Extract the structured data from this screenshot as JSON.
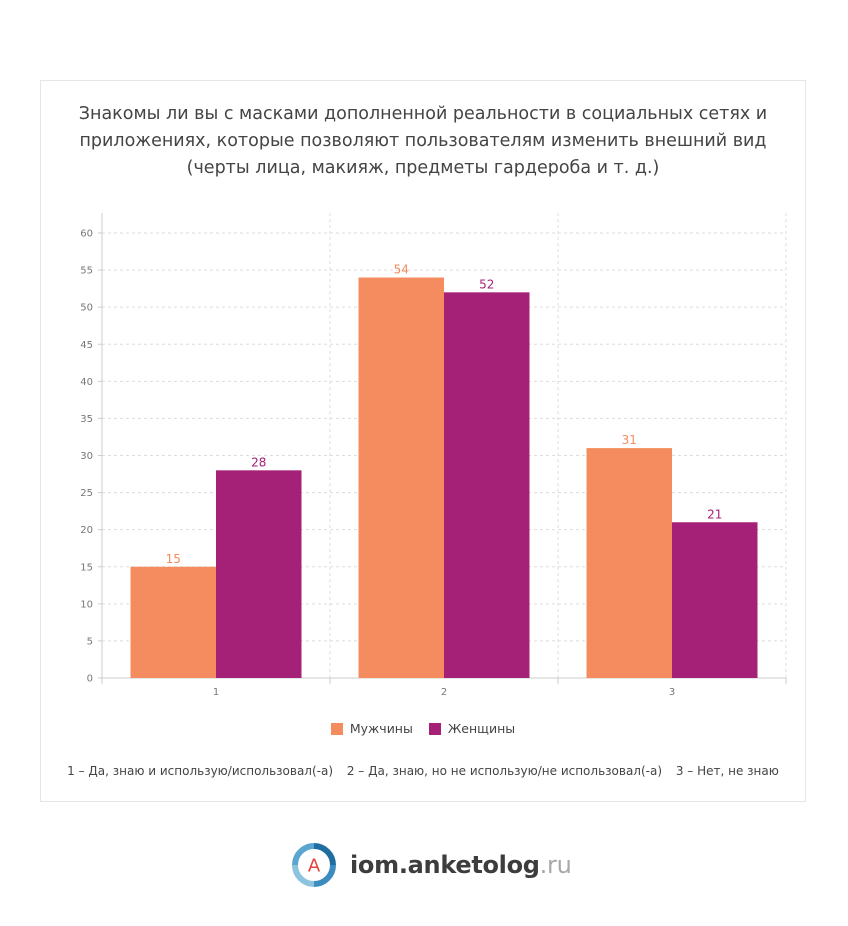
{
  "chart_data": {
    "type": "bar",
    "title": "Знакомы ли вы с масками дополненной реальности в социальных сетях и приложениях, которые позволяют пользователям изменить внешний вид (черты лица, макияж, предметы гардероба и т. д.)",
    "categories": [
      "1",
      "2",
      "3"
    ],
    "series": [
      {
        "name": "Мужчины",
        "values": [
          15,
          54,
          31
        ],
        "color": "#f58c5f"
      },
      {
        "name": "Женщины",
        "values": [
          28,
          52,
          21
        ],
        "color": "#a52077"
      }
    ],
    "ylim": [
      0,
      60
    ],
    "yticks": [
      0,
      5,
      10,
      15,
      20,
      25,
      30,
      35,
      40,
      45,
      50,
      55,
      60
    ],
    "grid": true,
    "legend_position": "bottom",
    "category_notes": [
      "1 – Да, знаю и использую/использовал(-а)",
      "2 – Да, знаю, но не использую/не использовал(-а)",
      "3 – Нет, не знаю"
    ]
  },
  "brand": {
    "logo_letter": "A",
    "name": "iom.anketolog",
    "tld": ".ru"
  }
}
